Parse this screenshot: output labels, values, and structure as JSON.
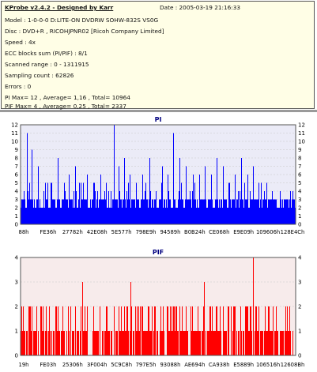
{
  "header": {
    "title": "KProbe v2.4.2 - Designed by Karr",
    "date": "Date : 2005-03-19 21:16:33",
    "lines": [
      "Model : 1-0-0-0 D:LITE-ON DVDRW SOHW-832S  VS0G",
      "Disc : DVD+R , RICOHJPNR02 [Ricoh Company Limited]",
      "Speed : 4x",
      "ECC blocks sum (PI/PIF) : 8/1",
      "Scanned range : 0 - 1311915",
      "Sampling count : 62826",
      "Errors : 0",
      "PI Max= 12 , Average= 1,16 , Total= 10964",
      "PIF Max= 4 , Average= 0,25 , Total= 2337"
    ]
  },
  "colors": {
    "pi": "#0000ff",
    "pif": "#ff0000",
    "pi_bg": "#ebebf7",
    "pif_bg": "#f7ebeb",
    "title": "#000080"
  },
  "chart_data": [
    {
      "type": "bar",
      "title": "PI",
      "ylim": [
        0,
        12
      ],
      "yticks": [
        0,
        1,
        2,
        3,
        4,
        5,
        6,
        7,
        8,
        9,
        10,
        11,
        12
      ],
      "xticks": [
        "88h",
        "FE36h",
        "27782h",
        "42E08h",
        "5E577h",
        "798E9h",
        "94589h",
        "B0B24h",
        "CE068h",
        "E9E09h",
        "109606h",
        "128E4Ch"
      ],
      "baseline": 3,
      "peaks": [
        [
          8,
          11
        ],
        [
          14,
          9
        ],
        [
          22,
          7
        ],
        [
          31,
          5
        ],
        [
          38,
          5
        ],
        [
          47,
          8
        ],
        [
          55,
          5
        ],
        [
          61,
          6
        ],
        [
          69,
          7
        ],
        [
          76,
          5
        ],
        [
          84,
          6
        ],
        [
          93,
          5
        ],
        [
          101,
          6
        ],
        [
          108,
          5
        ],
        [
          118,
          12
        ],
        [
          124,
          7
        ],
        [
          131,
          8
        ],
        [
          138,
          6
        ],
        [
          146,
          5
        ],
        [
          154,
          6
        ],
        [
          163,
          8
        ],
        [
          171,
          4
        ],
        [
          179,
          7
        ],
        [
          186,
          6
        ],
        [
          193,
          11
        ],
        [
          201,
          8
        ],
        [
          209,
          7
        ],
        [
          218,
          6
        ],
        [
          226,
          6
        ],
        [
          233,
          7
        ],
        [
          241,
          6
        ],
        [
          248,
          8
        ],
        [
          256,
          7
        ],
        [
          264,
          5
        ],
        [
          271,
          6
        ],
        [
          279,
          8
        ],
        [
          287,
          6
        ],
        [
          294,
          7
        ],
        [
          301,
          5
        ]
      ],
      "grid": true
    },
    {
      "type": "bar",
      "title": "PIF",
      "ylim": [
        0,
        4
      ],
      "yticks": [
        0,
        1,
        2,
        3,
        4
      ],
      "xticks": [
        "19h",
        "FE03h",
        "25306h",
        "3F004h",
        "5C9C8h",
        "797E5h",
        "93088h",
        "AE694h",
        "CA938h",
        "E5889h",
        "106516h",
        "12608Bh"
      ],
      "baseline": 1,
      "peaks": [
        [
          3,
          2
        ],
        [
          12,
          2
        ],
        [
          20,
          2
        ],
        [
          28,
          2
        ],
        [
          36,
          2
        ],
        [
          45,
          2
        ],
        [
          53,
          2
        ],
        [
          60,
          2
        ],
        [
          69,
          2
        ],
        [
          78,
          3
        ],
        [
          84,
          2
        ],
        [
          92,
          2
        ],
        [
          100,
          2
        ],
        [
          109,
          2
        ],
        [
          118,
          2
        ],
        [
          124,
          2
        ],
        [
          131,
          2
        ],
        [
          139,
          3
        ],
        [
          147,
          2
        ],
        [
          154,
          2
        ],
        [
          161,
          2
        ],
        [
          170,
          2
        ],
        [
          177,
          2
        ],
        [
          185,
          2
        ],
        [
          193,
          2
        ],
        [
          201,
          2
        ],
        [
          209,
          2
        ],
        [
          217,
          2
        ],
        [
          224,
          2
        ],
        [
          232,
          3
        ],
        [
          240,
          2
        ],
        [
          247,
          2
        ],
        [
          256,
          2
        ],
        [
          262,
          2
        ],
        [
          271,
          2
        ],
        [
          278,
          2
        ],
        [
          286,
          2
        ],
        [
          294,
          4
        ],
        [
          301,
          2
        ]
      ],
      "grid": true
    }
  ]
}
